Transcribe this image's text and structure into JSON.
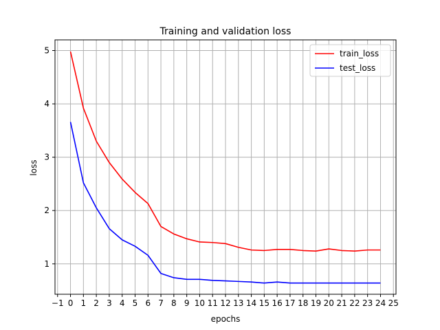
{
  "chart_data": {
    "type": "line",
    "title": "Training and validation loss",
    "xlabel": "epochs",
    "ylabel": "loss",
    "xlim": [
      -1.2,
      25.2
    ],
    "ylim": [
      0.43,
      5.2
    ],
    "xticks": [
      -1,
      0,
      1,
      2,
      3,
      4,
      5,
      6,
      7,
      8,
      9,
      10,
      11,
      12,
      13,
      14,
      15,
      16,
      17,
      18,
      19,
      20,
      21,
      22,
      23,
      24,
      25
    ],
    "yticks": [
      1,
      2,
      3,
      4,
      5
    ],
    "grid": true,
    "legend_position": "top-right",
    "x": [
      0,
      1,
      2,
      3,
      4,
      5,
      6,
      7,
      8,
      9,
      10,
      11,
      12,
      13,
      14,
      15,
      16,
      17,
      18,
      19,
      20,
      21,
      22,
      23,
      24
    ],
    "series": [
      {
        "name": "train_loss",
        "color": "#ff0000",
        "values": [
          4.98,
          3.92,
          3.3,
          2.9,
          2.59,
          2.34,
          2.13,
          1.7,
          1.56,
          1.47,
          1.41,
          1.4,
          1.38,
          1.31,
          1.26,
          1.25,
          1.27,
          1.27,
          1.25,
          1.24,
          1.28,
          1.25,
          1.24,
          1.26,
          1.26
        ]
      },
      {
        "name": "test_loss",
        "color": "#0000ff",
        "values": [
          3.66,
          2.52,
          2.05,
          1.66,
          1.45,
          1.33,
          1.16,
          0.82,
          0.74,
          0.71,
          0.71,
          0.69,
          0.68,
          0.67,
          0.66,
          0.64,
          0.66,
          0.64,
          0.64,
          0.64,
          0.64,
          0.64,
          0.64,
          0.64,
          0.64
        ]
      }
    ]
  }
}
